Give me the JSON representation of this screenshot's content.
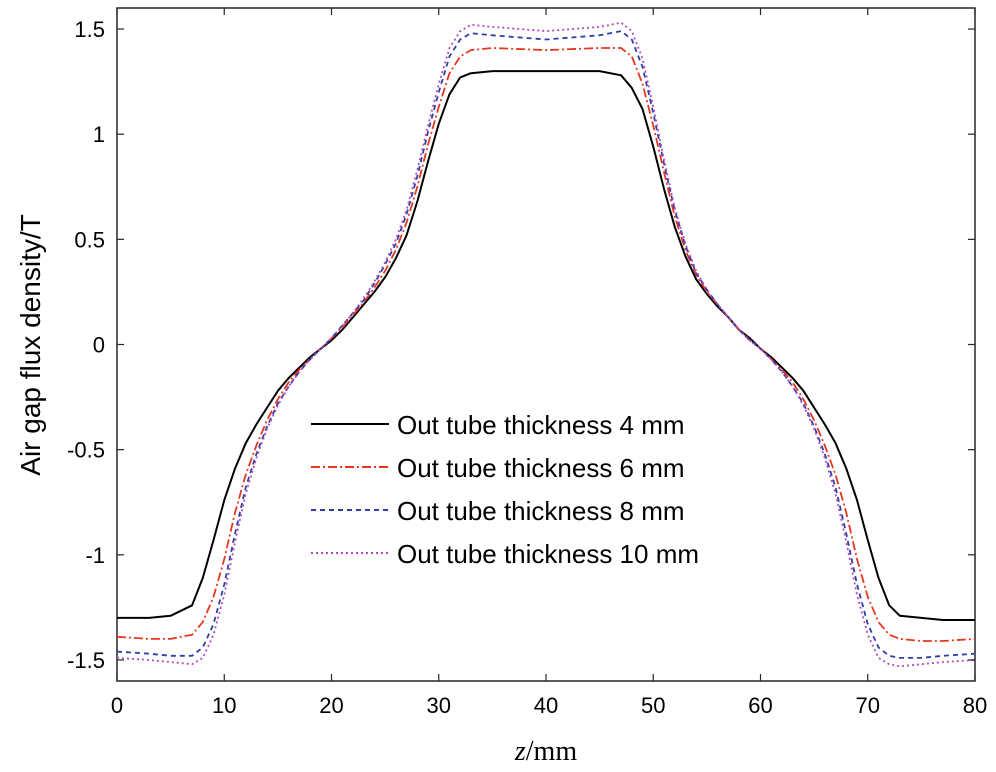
{
  "chart_data": {
    "type": "line",
    "title": "",
    "xlabel_var": "z",
    "xlabel_unit": "/mm",
    "ylabel": "Air gap flux density/T",
    "xlim": [
      0,
      80
    ],
    "ylim": [
      -1.6,
      1.6
    ],
    "xticks": [
      0,
      10,
      20,
      30,
      40,
      50,
      60,
      70,
      80
    ],
    "xtick_labels": [
      "0",
      "10",
      "20",
      "30",
      "40",
      "50",
      "60",
      "70",
      "80"
    ],
    "yticks": [
      -1.5,
      -1,
      -0.5,
      0,
      0.5,
      1,
      1.5
    ],
    "ytick_labels": [
      "-1.5",
      "-1",
      "-0.5",
      "0",
      "0.5",
      "1",
      "1.5"
    ],
    "grid": false,
    "legend_position": "lower-center",
    "series": [
      {
        "name": "Out tube thickness 4 mm",
        "color": "#000000",
        "dash": "",
        "x": [
          0,
          3,
          5,
          7,
          8,
          9,
          10,
          11,
          12,
          13,
          14,
          15,
          16,
          17,
          18,
          19,
          20,
          21,
          22,
          23,
          24,
          25,
          26,
          27,
          28,
          29,
          30,
          31,
          32,
          33,
          35,
          40,
          45,
          47,
          48,
          49,
          50,
          51,
          52,
          53,
          54,
          55,
          56,
          57,
          58,
          59,
          60,
          61,
          62,
          63,
          64,
          65,
          66,
          67,
          68,
          69,
          70,
          71,
          72,
          73,
          75,
          77,
          80
        ],
        "y": [
          -1.3,
          -1.3,
          -1.29,
          -1.24,
          -1.11,
          -0.93,
          -0.74,
          -0.59,
          -0.47,
          -0.38,
          -0.3,
          -0.22,
          -0.16,
          -0.11,
          -0.06,
          -0.02,
          0.02,
          0.07,
          0.13,
          0.19,
          0.25,
          0.32,
          0.41,
          0.52,
          0.68,
          0.87,
          1.05,
          1.19,
          1.27,
          1.29,
          1.3,
          1.3,
          1.3,
          1.28,
          1.22,
          1.12,
          0.94,
          0.74,
          0.56,
          0.42,
          0.31,
          0.24,
          0.18,
          0.13,
          0.07,
          0.03,
          -0.02,
          -0.06,
          -0.11,
          -0.16,
          -0.22,
          -0.3,
          -0.38,
          -0.47,
          -0.59,
          -0.74,
          -0.93,
          -1.11,
          -1.24,
          -1.29,
          -1.3,
          -1.31,
          -1.31
        ]
      },
      {
        "name": "Out tube thickness 6 mm",
        "color": "#e8361f",
        "dash": "9 3 2 3",
        "x": [
          0,
          3,
          5,
          7,
          8,
          9,
          10,
          11,
          12,
          13,
          14,
          15,
          16,
          17,
          18,
          19,
          20,
          21,
          22,
          23,
          24,
          25,
          26,
          27,
          28,
          29,
          30,
          31,
          32,
          33,
          35,
          40,
          45,
          47,
          48,
          49,
          50,
          51,
          52,
          53,
          54,
          55,
          56,
          57,
          58,
          59,
          60,
          61,
          62,
          63,
          64,
          65,
          66,
          67,
          68,
          69,
          70,
          71,
          72,
          73,
          75,
          77,
          80
        ],
        "y": [
          -1.39,
          -1.4,
          -1.4,
          -1.38,
          -1.32,
          -1.2,
          -1.02,
          -0.8,
          -0.62,
          -0.48,
          -0.36,
          -0.26,
          -0.18,
          -0.12,
          -0.07,
          -0.02,
          0.03,
          0.08,
          0.14,
          0.2,
          0.27,
          0.35,
          0.45,
          0.58,
          0.75,
          0.95,
          1.13,
          1.29,
          1.37,
          1.4,
          1.41,
          1.4,
          1.41,
          1.41,
          1.37,
          1.24,
          1.04,
          0.82,
          0.61,
          0.45,
          0.33,
          0.25,
          0.19,
          0.13,
          0.07,
          0.02,
          -0.02,
          -0.07,
          -0.12,
          -0.18,
          -0.26,
          -0.36,
          -0.48,
          -0.62,
          -0.8,
          -1.02,
          -1.2,
          -1.32,
          -1.38,
          -1.4,
          -1.41,
          -1.41,
          -1.4
        ]
      },
      {
        "name": "Out tube thickness 8 mm",
        "color": "#2f3fa8",
        "dash": "5 4",
        "x": [
          0,
          3,
          5,
          7,
          8,
          9,
          10,
          11,
          12,
          13,
          14,
          15,
          16,
          17,
          18,
          19,
          20,
          21,
          22,
          23,
          24,
          25,
          26,
          27,
          28,
          29,
          30,
          31,
          32,
          33,
          35,
          40,
          45,
          47,
          48,
          49,
          50,
          51,
          52,
          53,
          54,
          55,
          56,
          57,
          58,
          59,
          60,
          61,
          62,
          63,
          64,
          65,
          66,
          67,
          68,
          69,
          70,
          71,
          72,
          73,
          75,
          77,
          80
        ],
        "y": [
          -1.46,
          -1.47,
          -1.48,
          -1.48,
          -1.44,
          -1.33,
          -1.14,
          -0.9,
          -0.68,
          -0.52,
          -0.39,
          -0.28,
          -0.2,
          -0.13,
          -0.07,
          -0.02,
          0.03,
          0.09,
          0.15,
          0.21,
          0.29,
          0.38,
          0.48,
          0.62,
          0.8,
          1.01,
          1.2,
          1.37,
          1.45,
          1.48,
          1.47,
          1.45,
          1.47,
          1.49,
          1.45,
          1.32,
          1.1,
          0.86,
          0.64,
          0.47,
          0.34,
          0.26,
          0.19,
          0.13,
          0.07,
          0.02,
          -0.02,
          -0.07,
          -0.13,
          -0.2,
          -0.28,
          -0.39,
          -0.52,
          -0.68,
          -0.9,
          -1.14,
          -1.33,
          -1.44,
          -1.48,
          -1.49,
          -1.49,
          -1.48,
          -1.47
        ]
      },
      {
        "name": "Out tube thickness 10 mm",
        "color": "#b14bbf",
        "dash": "2 3",
        "x": [
          0,
          3,
          5,
          7,
          8,
          9,
          10,
          11,
          12,
          13,
          14,
          15,
          16,
          17,
          18,
          19,
          20,
          21,
          22,
          23,
          24,
          25,
          26,
          27,
          28,
          29,
          30,
          31,
          32,
          33,
          35,
          40,
          45,
          47,
          48,
          49,
          50,
          51,
          52,
          53,
          54,
          55,
          56,
          57,
          58,
          59,
          60,
          61,
          62,
          63,
          64,
          65,
          66,
          67,
          68,
          69,
          70,
          71,
          72,
          73,
          75,
          77,
          80
        ],
        "y": [
          -1.49,
          -1.5,
          -1.51,
          -1.52,
          -1.49,
          -1.38,
          -1.19,
          -0.94,
          -0.71,
          -0.54,
          -0.4,
          -0.29,
          -0.2,
          -0.13,
          -0.07,
          -0.02,
          0.03,
          0.09,
          0.15,
          0.22,
          0.3,
          0.39,
          0.5,
          0.64,
          0.83,
          1.04,
          1.24,
          1.41,
          1.49,
          1.52,
          1.51,
          1.49,
          1.51,
          1.53,
          1.49,
          1.36,
          1.13,
          0.88,
          0.65,
          0.48,
          0.35,
          0.26,
          0.19,
          0.13,
          0.07,
          0.02,
          -0.02,
          -0.07,
          -0.13,
          -0.2,
          -0.29,
          -0.4,
          -0.54,
          -0.71,
          -0.94,
          -1.19,
          -1.38,
          -1.49,
          -1.52,
          -1.53,
          -1.52,
          -1.51,
          -1.5
        ]
      }
    ]
  }
}
